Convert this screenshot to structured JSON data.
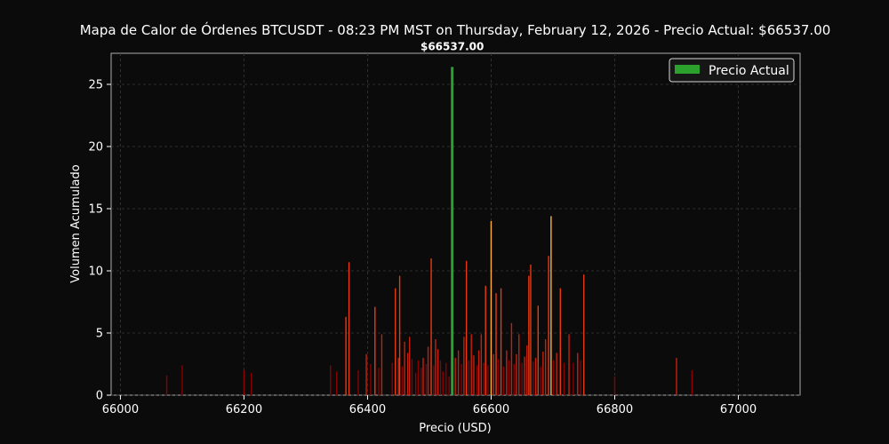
{
  "chart_data": {
    "type": "bar",
    "title": "Mapa de Calor de Órdenes BTCUSDT - 08:23 PM MST on Thursday, February 12, 2026 - Precio Actual: $66537.00",
    "xlabel": "Precio (USD)",
    "ylabel": "Volumen Acumulado",
    "xlim": [
      65985,
      67100
    ],
    "ylim": [
      0,
      27.5
    ],
    "xticks": [
      66000,
      66200,
      66400,
      66600,
      66800,
      67000
    ],
    "yticks": [
      0,
      5,
      10,
      15,
      20,
      25
    ],
    "grid": true,
    "legend": {
      "position": "top-right",
      "entries": [
        {
          "label": "Precio Actual",
          "color": "#2ca02c"
        }
      ]
    },
    "current_price": {
      "x": 66537,
      "value": 26.4,
      "label": "$66537.00",
      "color": "#2ca02c"
    },
    "colors": {
      "background": "#0b0b0b",
      "low": "#8b0000",
      "mid": "#e83a10",
      "high": "#ffb13b"
    },
    "series": [
      {
        "points": [
          [
            66075,
            1.6
          ],
          [
            66100,
            2.4
          ],
          [
            66200,
            2.0
          ],
          [
            66212,
            1.8
          ],
          [
            66340,
            2.4
          ],
          [
            66350,
            1.9
          ],
          [
            66365,
            6.3
          ],
          [
            66370,
            10.7
          ],
          [
            66385,
            2.0
          ],
          [
            66398,
            3.3
          ],
          [
            66405,
            2.5
          ],
          [
            66412,
            7.1
          ],
          [
            66418,
            2.2
          ],
          [
            66423,
            4.9
          ],
          [
            66440,
            2.6
          ],
          [
            66445,
            8.6
          ],
          [
            66450,
            3.0
          ],
          [
            66452,
            9.6
          ],
          [
            66456,
            2.3
          ],
          [
            66460,
            4.3
          ],
          [
            66465,
            3.4
          ],
          [
            66468,
            4.7
          ],
          [
            66472,
            2.9
          ],
          [
            66478,
            1.8
          ],
          [
            66482,
            2.8
          ],
          [
            66487,
            2.2
          ],
          [
            66490,
            3.0
          ],
          [
            66495,
            2.5
          ],
          [
            66498,
            3.9
          ],
          [
            66503,
            11.0
          ],
          [
            66507,
            2.4
          ],
          [
            66510,
            4.5
          ],
          [
            66514,
            3.7
          ],
          [
            66518,
            2.8
          ],
          [
            66522,
            1.9
          ],
          [
            66527,
            2.6
          ],
          [
            66532,
            1.5
          ],
          [
            66542,
            3.0
          ],
          [
            66547,
            3.6
          ],
          [
            66552,
            2.5
          ],
          [
            66556,
            4.7
          ],
          [
            66560,
            10.8
          ],
          [
            66564,
            2.8
          ],
          [
            66568,
            4.9
          ],
          [
            66572,
            3.2
          ],
          [
            66577,
            2.4
          ],
          [
            66580,
            3.6
          ],
          [
            66584,
            4.9
          ],
          [
            66588,
            2.6
          ],
          [
            66591,
            8.8
          ],
          [
            66595,
            2.4
          ],
          [
            66600,
            14.0
          ],
          [
            66604,
            3.3
          ],
          [
            66608,
            8.2
          ],
          [
            66612,
            2.9
          ],
          [
            66616,
            8.6
          ],
          [
            66620,
            2.3
          ],
          [
            66625,
            3.6
          ],
          [
            66629,
            2.8
          ],
          [
            66633,
            5.8
          ],
          [
            66637,
            2.5
          ],
          [
            66641,
            3.3
          ],
          [
            66645,
            4.9
          ],
          [
            66650,
            2.6
          ],
          [
            66654,
            3.1
          ],
          [
            66658,
            4.0
          ],
          [
            66661,
            9.6
          ],
          [
            66664,
            10.5
          ],
          [
            66668,
            2.7
          ],
          [
            66672,
            3.0
          ],
          [
            66676,
            7.2
          ],
          [
            66680,
            2.3
          ],
          [
            66684,
            3.5
          ],
          [
            66688,
            4.5
          ],
          [
            66693,
            11.2
          ],
          [
            66697,
            14.4
          ],
          [
            66701,
            2.8
          ],
          [
            66706,
            3.4
          ],
          [
            66712,
            8.6
          ],
          [
            66718,
            2.6
          ],
          [
            66726,
            4.9
          ],
          [
            66733,
            2.6
          ],
          [
            66740,
            3.4
          ],
          [
            66745,
            2.8
          ],
          [
            66750,
            9.7
          ],
          [
            66800,
            1.5
          ],
          [
            66900,
            3.0
          ],
          [
            66925,
            2.0
          ]
        ]
      }
    ]
  }
}
